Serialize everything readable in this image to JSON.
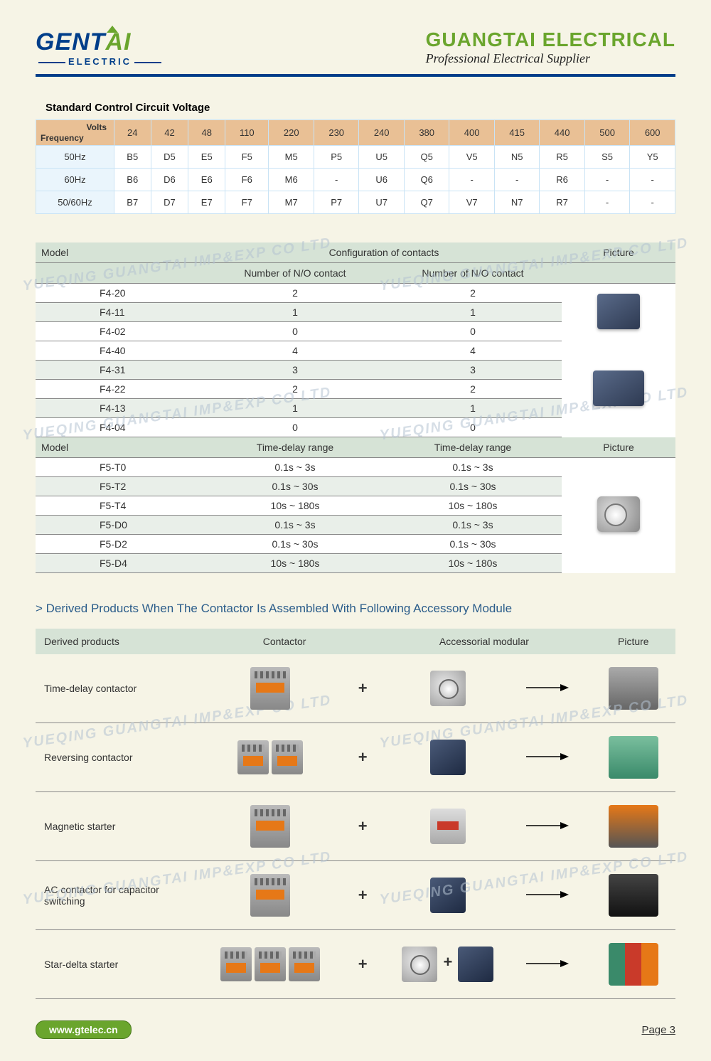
{
  "header": {
    "logo_main": "GENT",
    "logo_accent": "AI",
    "logo_sub": "ELECTRIC",
    "brand_title": "GUANGTAI ELECTRICAL",
    "brand_sub": "Professional Electrical Supplier"
  },
  "voltage": {
    "title": "Standard Control Circuit Voltage",
    "corner_volts": "Volts",
    "corner_freq": "Frequency",
    "volts": [
      "24",
      "42",
      "48",
      "110",
      "220",
      "230",
      "240",
      "380",
      "400",
      "415",
      "440",
      "500",
      "600"
    ],
    "rows": [
      {
        "freq": "50Hz",
        "cells": [
          "B5",
          "D5",
          "E5",
          "F5",
          "M5",
          "P5",
          "U5",
          "Q5",
          "V5",
          "N5",
          "R5",
          "S5",
          "Y5"
        ]
      },
      {
        "freq": "60Hz",
        "cells": [
          "B6",
          "D6",
          "E6",
          "F6",
          "M6",
          "-",
          "U6",
          "Q6",
          "-",
          "-",
          "R6",
          "-",
          "-"
        ]
      },
      {
        "freq": "50/60Hz",
        "cells": [
          "B7",
          "D7",
          "E7",
          "F7",
          "M7",
          "P7",
          "U7",
          "Q7",
          "V7",
          "N7",
          "R7",
          "-",
          "-"
        ]
      }
    ]
  },
  "config": {
    "hdr_model": "Model",
    "hdr_config": "Configuration of contacts",
    "hdr_no": "Number of N/O contact",
    "hdr_nc": "Number of N/O contact",
    "hdr_picture": "Picture",
    "group1": [
      {
        "model": "F4-20",
        "no": "2",
        "nc": "2"
      },
      {
        "model": "F4-11",
        "no": "1",
        "nc": "1"
      },
      {
        "model": "F4-02",
        "no": "0",
        "nc": "0"
      }
    ],
    "group2": [
      {
        "model": "F4-40",
        "no": "4",
        "nc": "4"
      },
      {
        "model": "F4-31",
        "no": "3",
        "nc": "3"
      },
      {
        "model": "F4-22",
        "no": "2",
        "nc": "2"
      },
      {
        "model": "F4-13",
        "no": "1",
        "nc": "1"
      },
      {
        "model": "F4-04",
        "no": "0",
        "nc": "0"
      }
    ],
    "hdr2_model": "Model",
    "hdr2_td1": "Time-delay range",
    "hdr2_td2": "Time-delay range",
    "hdr2_picture": "Picture",
    "group3": [
      {
        "model": "F5-T0",
        "r1": "0.1s ~ 3s",
        "r2": "0.1s ~ 3s"
      },
      {
        "model": "F5-T2",
        "r1": "0.1s ~ 30s",
        "r2": "0.1s ~ 30s"
      },
      {
        "model": "F5-T4",
        "r1": "10s ~ 180s",
        "r2": "10s ~ 180s"
      },
      {
        "model": "F5-D0",
        "r1": "0.1s ~ 3s",
        "r2": "0.1s ~ 3s"
      },
      {
        "model": "F5-D2",
        "r1": "0.1s ~ 30s",
        "r2": "0.1s ~ 30s"
      },
      {
        "model": "F5-D4",
        "r1": "10s ~ 180s",
        "r2": "10s ~ 180s"
      }
    ]
  },
  "derived": {
    "title": "> Derived Products When The Contactor Is Assembled With Following Accessory Module",
    "hdr_dp": "Derived products",
    "hdr_cont": "Contactor",
    "hdr_acc": "Accessorial modular",
    "hdr_pic": "Picture",
    "plus": "+",
    "rows": [
      {
        "name": "Time-delay contactor",
        "cont": 1,
        "acc": "timer",
        "res": "combo"
      },
      {
        "name": "Reversing contactor",
        "cont": 2,
        "acc": "block",
        "res": "green"
      },
      {
        "name": "Magnetic starter",
        "cont": 1,
        "acc": "relay",
        "res": "orange"
      },
      {
        "name": "AC contactor for capacitor switching",
        "cont": 1,
        "acc": "block",
        "res": "black"
      },
      {
        "name": "Star-delta starter",
        "cont": 3,
        "acc": "timer",
        "acc2": "block",
        "res": "multi"
      }
    ]
  },
  "watermark": "YUEQING GUANGTAI IMP&EXP CO LTD",
  "footer": {
    "url": "www.gtelec.cn",
    "page": "Page 3"
  },
  "colors": {
    "bg": "#f6f4e6",
    "blue": "#003e8a",
    "green": "#6aa52d",
    "table_hdr": "#e9c095",
    "table_cell": "#eaf5fc",
    "cfg_hdr": "#d6e3d6"
  }
}
